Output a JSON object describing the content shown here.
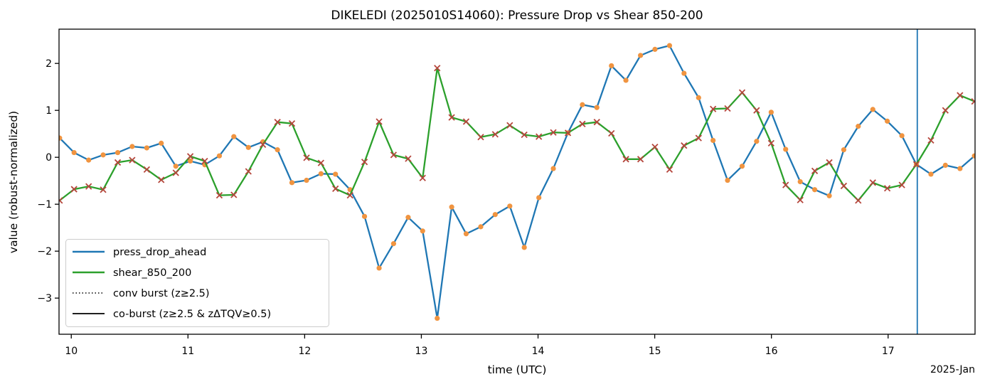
{
  "chart_data": {
    "type": "line",
    "title": "DIKELEDI (2025010S14060): Pressure Drop vs Shear 850-200",
    "xlabel": "time (UTC)",
    "ylabel": "value (robust-normalized)",
    "x_offset_label": "2025-Jan",
    "xlim": [
      9.895,
      17.745
    ],
    "ylim": [
      -3.77,
      2.73
    ],
    "xticks": [
      10,
      11,
      12,
      13,
      14,
      15,
      16,
      17
    ],
    "yticks": [
      -3,
      -2,
      -1,
      0,
      1,
      2
    ],
    "grid": false,
    "x": [
      9.9,
      10.024,
      10.149,
      10.273,
      10.398,
      10.522,
      10.647,
      10.771,
      10.896,
      11.02,
      11.144,
      11.269,
      11.393,
      11.518,
      11.642,
      11.767,
      11.891,
      12.016,
      12.14,
      12.264,
      12.389,
      12.513,
      12.638,
      12.762,
      12.887,
      13.011,
      13.136,
      13.26,
      13.384,
      13.509,
      13.633,
      13.758,
      13.882,
      14.007,
      14.131,
      14.256,
      14.38,
      14.504,
      14.629,
      14.753,
      14.878,
      15.002,
      15.127,
      15.251,
      15.376,
      15.5,
      15.624,
      15.749,
      15.873,
      15.998,
      16.122,
      16.247,
      16.371,
      16.496,
      16.62,
      16.744,
      16.869,
      16.993,
      17.118,
      17.242,
      17.367,
      17.491,
      17.616,
      17.74
    ],
    "series": [
      {
        "name": "press_drop_ahead",
        "color": "#1f77b4",
        "marker": "circle",
        "marker_color": "#f09440",
        "values": [
          0.41,
          0.1,
          -0.06,
          0.05,
          0.1,
          0.23,
          0.2,
          0.3,
          -0.19,
          -0.08,
          -0.16,
          0.03,
          0.44,
          0.21,
          0.33,
          0.16,
          -0.54,
          -0.49,
          -0.35,
          -0.36,
          -0.69,
          -1.26,
          -2.36,
          -1.84,
          -1.28,
          -1.57,
          -3.43,
          -1.06,
          -1.63,
          -1.48,
          -1.22,
          -1.04,
          -1.92,
          -0.86,
          -0.24,
          0.52,
          1.12,
          1.06,
          1.95,
          1.64,
          2.17,
          2.3,
          2.38,
          1.79,
          1.27,
          0.36,
          -0.49,
          -0.19,
          0.34,
          0.96,
          0.17,
          -0.52,
          -0.69,
          -0.82,
          0.16,
          0.66,
          1.02,
          0.77,
          0.46,
          -0.15,
          -0.36,
          -0.17,
          -0.24,
          0.03
        ]
      },
      {
        "name": "shear_850_200",
        "color": "#2ca02c",
        "marker": "x",
        "marker_color": "#b5463c",
        "values": [
          -0.92,
          -0.68,
          -0.62,
          -0.69,
          -0.11,
          -0.06,
          -0.26,
          -0.48,
          -0.33,
          0.02,
          -0.08,
          -0.81,
          -0.8,
          -0.3,
          0.27,
          0.75,
          0.72,
          -0.01,
          -0.12,
          -0.67,
          -0.81,
          -0.1,
          0.76,
          0.05,
          -0.03,
          -0.44,
          1.9,
          0.85,
          0.76,
          0.43,
          0.49,
          0.68,
          0.48,
          0.44,
          0.53,
          0.52,
          0.71,
          0.75,
          0.51,
          -0.04,
          -0.04,
          0.22,
          -0.26,
          0.25,
          0.41,
          1.03,
          1.04,
          1.38,
          1.0,
          0.3,
          -0.59,
          -0.91,
          -0.29,
          -0.11,
          -0.61,
          -0.92,
          -0.54,
          -0.66,
          -0.59,
          -0.15,
          0.36,
          1.0,
          1.32,
          1.19
        ]
      }
    ],
    "vline": {
      "x": 17.25,
      "color": "#1f77b4"
    },
    "legend": {
      "position": "lower left",
      "items": [
        {
          "label": "press_drop_ahead",
          "style": "solid",
          "color": "#1f77b4",
          "width": 2.5
        },
        {
          "label": "shear_850_200",
          "style": "solid",
          "color": "#2ca02c",
          "width": 2.5
        },
        {
          "label": "conv burst (z≥2.5)",
          "style": "dotted",
          "color": "#000000",
          "width": 1.5
        },
        {
          "label": "co-burst (z≥2.5 & zΔTQV≥0.5)",
          "style": "solid",
          "color": "#000000",
          "width": 1.8
        }
      ]
    }
  }
}
